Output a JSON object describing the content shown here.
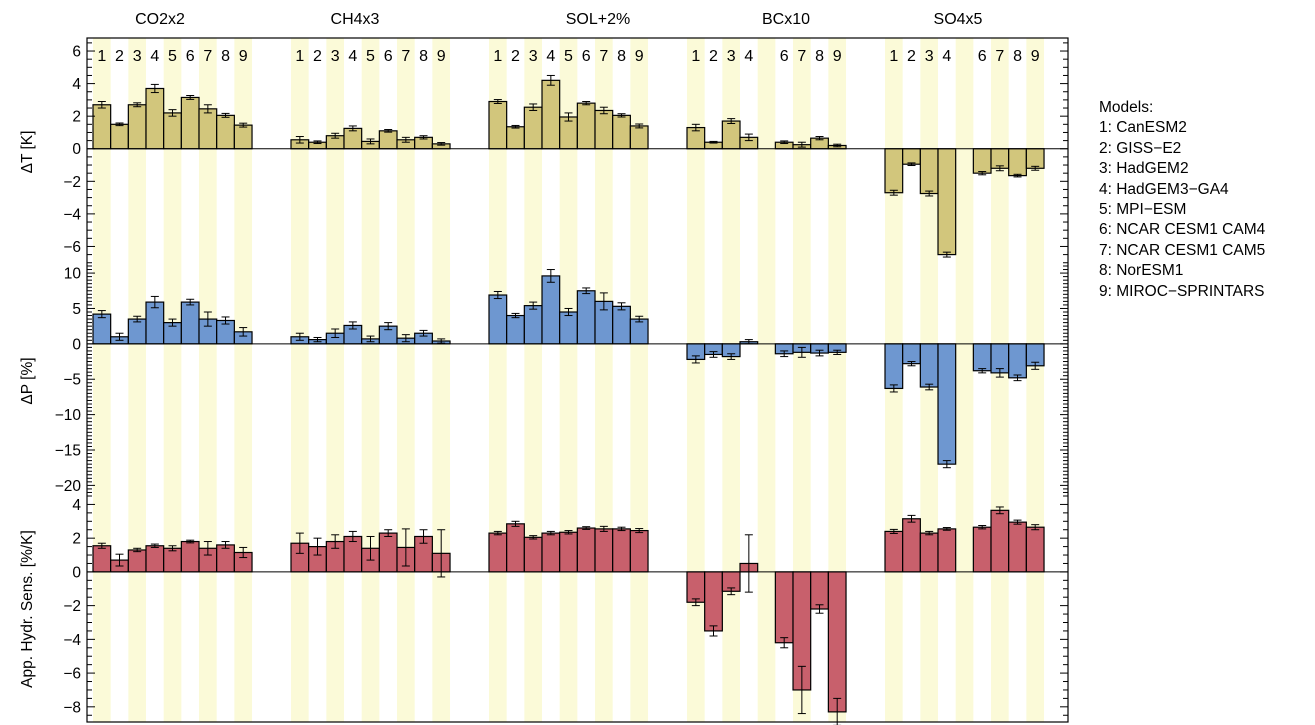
{
  "chart_data": {
    "type": "bar",
    "experiments": [
      "CO2x2",
      "CH4x3",
      "SOL+2%",
      "BCx10",
      "SO4x5"
    ],
    "model_numbers": [
      "1",
      "2",
      "3",
      "4",
      "5",
      "6",
      "7",
      "8",
      "9"
    ],
    "colors": {
      "temperature": "#d2c67c",
      "precipitation": "#6e97d0",
      "sensitivity": "#c8606c",
      "highlight": "#fbfad8"
    },
    "panels": [
      {
        "id": "temperature",
        "ylabel": "ΔT [K]",
        "ylim": [
          -7.2,
          6.8
        ],
        "ticks": [
          "6",
          "4",
          "2",
          "0",
          "−2",
          "−4",
          "−6"
        ],
        "tick_values": [
          6,
          4,
          2,
          0,
          -2,
          -4,
          -6
        ],
        "values": [
          [
            2.7,
            1.5,
            2.7,
            3.7,
            2.2,
            3.15,
            2.45,
            2.05,
            1.45
          ],
          [
            0.55,
            0.4,
            0.8,
            1.25,
            0.45,
            1.1,
            0.55,
            0.7,
            0.3
          ],
          [
            2.9,
            1.35,
            2.55,
            4.2,
            1.95,
            2.8,
            2.35,
            2.05,
            1.4
          ],
          [
            1.3,
            0.4,
            1.7,
            0.7,
            null,
            0.4,
            0.25,
            0.65,
            0.2
          ],
          [
            -2.7,
            -0.95,
            -2.75,
            -6.5,
            null,
            -1.5,
            -1.2,
            -1.65,
            -1.2
          ]
        ],
        "errors": [
          [
            0.2,
            0.08,
            0.12,
            0.25,
            0.2,
            0.12,
            0.25,
            0.12,
            0.12
          ],
          [
            0.2,
            0.08,
            0.15,
            0.15,
            0.15,
            0.08,
            0.15,
            0.1,
            0.08
          ],
          [
            0.12,
            0.08,
            0.2,
            0.3,
            0.25,
            0.1,
            0.2,
            0.1,
            0.12
          ],
          [
            0.2,
            0.05,
            0.15,
            0.2,
            null,
            0.08,
            0.15,
            0.1,
            0.08
          ],
          [
            0.15,
            0.08,
            0.15,
            0.15,
            null,
            0.1,
            0.15,
            0.08,
            0.12
          ]
        ]
      },
      {
        "id": "precipitation",
        "ylabel": "ΔP [%]",
        "ylim": [
          -21.5,
          11.0
        ],
        "ticks": [
          "10",
          "5",
          "0",
          "−5",
          "−10",
          "−15",
          "−20"
        ],
        "tick_values": [
          10,
          5,
          0,
          -5,
          -10,
          -15,
          -20
        ],
        "values": [
          [
            4.2,
            1.0,
            3.5,
            5.9,
            3.0,
            5.9,
            3.5,
            3.3,
            1.7
          ],
          [
            1.0,
            0.6,
            1.5,
            2.6,
            0.7,
            2.5,
            0.8,
            1.5,
            0.4
          ],
          [
            6.9,
            4.0,
            5.4,
            9.6,
            4.5,
            7.5,
            6.0,
            5.3,
            3.5
          ],
          [
            -2.2,
            -1.5,
            -1.8,
            0.3,
            null,
            -1.4,
            -1.2,
            -1.3,
            -1.2
          ],
          [
            -6.3,
            -2.8,
            -6.1,
            -17.0,
            null,
            -3.8,
            -4.1,
            -4.8,
            -3.1
          ]
        ],
        "errors": [
          [
            0.5,
            0.5,
            0.4,
            0.8,
            0.5,
            0.4,
            1.0,
            0.5,
            0.6
          ],
          [
            0.5,
            0.3,
            0.6,
            0.5,
            0.4,
            0.5,
            0.5,
            0.4,
            0.3
          ],
          [
            0.5,
            0.3,
            0.5,
            0.9,
            0.5,
            0.4,
            1.2,
            0.5,
            0.4
          ],
          [
            0.5,
            0.4,
            0.4,
            0.3,
            null,
            0.4,
            0.7,
            0.4,
            0.3
          ],
          [
            0.5,
            0.3,
            0.4,
            0.5,
            null,
            0.3,
            0.6,
            0.4,
            0.5
          ]
        ]
      },
      {
        "id": "sensitivity",
        "ylabel": "App. Hydr. Sens. [%/K]",
        "ylim": [
          -8.9,
          4.5
        ],
        "ticks": [
          "4",
          "2",
          "0",
          "−2",
          "−4",
          "−6",
          "−8"
        ],
        "tick_values": [
          4,
          2,
          0,
          -2,
          -4,
          -6,
          -8
        ],
        "values": [
          [
            1.55,
            0.7,
            1.3,
            1.55,
            1.4,
            1.8,
            1.4,
            1.6,
            1.15
          ],
          [
            1.7,
            1.5,
            1.8,
            2.1,
            1.4,
            2.3,
            1.45,
            2.1,
            1.1
          ],
          [
            2.3,
            2.85,
            2.05,
            2.3,
            2.35,
            2.6,
            2.55,
            2.55,
            2.45
          ],
          [
            -1.8,
            -3.5,
            -1.15,
            0.5,
            null,
            -4.2,
            -7.0,
            -2.2,
            -8.3
          ],
          [
            2.4,
            3.15,
            2.3,
            2.55,
            null,
            2.65,
            3.65,
            2.95,
            2.65
          ]
        ],
        "errors": [
          [
            0.15,
            0.35,
            0.1,
            0.1,
            0.15,
            0.08,
            0.4,
            0.2,
            0.3
          ],
          [
            0.6,
            0.5,
            0.4,
            0.3,
            0.7,
            0.2,
            1.1,
            0.4,
            1.4
          ],
          [
            0.1,
            0.15,
            0.1,
            0.1,
            0.1,
            0.08,
            0.15,
            0.1,
            0.12
          ],
          [
            0.2,
            0.3,
            0.2,
            1.7,
            null,
            0.3,
            1.4,
            0.25,
            0.8
          ],
          [
            0.12,
            0.2,
            0.1,
            0.08,
            null,
            0.1,
            0.2,
            0.12,
            0.15
          ]
        ]
      }
    ]
  },
  "legend": {
    "title": "Models:",
    "items": [
      "1: CanESM2",
      "2: GISS−E2",
      "3: HadGEM2",
      "4: HadGEM3−GA4",
      "5: MPI−ESM",
      "6: NCAR CESM1 CAM4",
      "7: NCAR CESM1 CAM5",
      "8: NorESM1",
      "9: MIROC−SPRINTARS"
    ]
  }
}
